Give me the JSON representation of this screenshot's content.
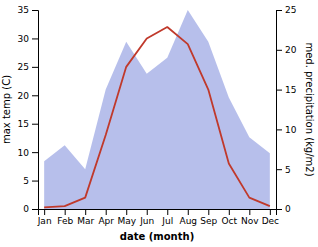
{
  "chart_data": {
    "type": "line",
    "categories": [
      "Jan",
      "Feb",
      "Mar",
      "Apr",
      "May",
      "Jun",
      "Jul",
      "Aug",
      "Sep",
      "Oct",
      "Nov",
      "Dec"
    ],
    "series": [
      {
        "type": "area",
        "color": "#aab4e8",
        "axis": "y2",
        "values": [
          6.0,
          8.0,
          5.0,
          15.0,
          21.0,
          17.0,
          19.0,
          25.0,
          21.0,
          14.0,
          9.0,
          7.0
        ]
      },
      {
        "type": "line",
        "color": "#c0392b",
        "values": [
          0.3,
          0.5,
          2.0,
          13.0,
          25.0,
          30.0,
          32.0,
          29.0,
          21.0,
          8.0,
          2.0,
          0.5
        ]
      }
    ],
    "xlabel": "date (month)",
    "ylabel": "max temp (C)",
    "y2label": "med. precipitation (kg/m2)",
    "ylim": [
      0,
      35
    ],
    "yticks": [
      0,
      5,
      10,
      15,
      20,
      25,
      30,
      35
    ],
    "y2lim": [
      0,
      25
    ],
    "y2ticks": [
      0,
      5,
      10,
      15,
      20,
      25
    ],
    "grid": false
  }
}
